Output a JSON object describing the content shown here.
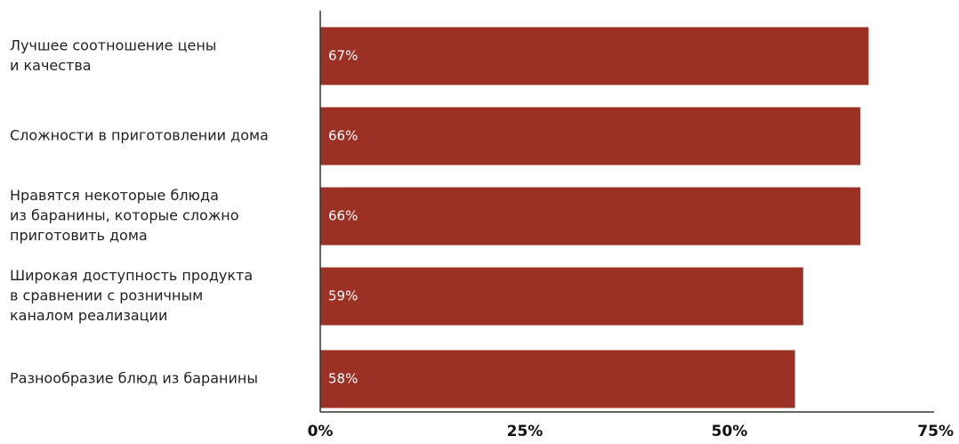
{
  "chart_data": {
    "type": "bar",
    "orientation": "horizontal",
    "categories": [
      [
        "Лучшее соотношение цены",
        "и качества"
      ],
      [
        "Сложности в приготовлении дома"
      ],
      [
        "Нравятся некоторые блюда",
        "из баранины, которые сложно",
        "приготовить дома"
      ],
      [
        "Широкая доступность продукта",
        "в сравнении с розничным",
        "каналом реализации"
      ],
      [
        "Разнообразие блюд из баранины"
      ]
    ],
    "values": [
      67,
      66,
      66,
      59,
      58
    ],
    "data_labels": [
      "67%",
      "66%",
      "66%",
      "59%",
      "58%"
    ],
    "xlim": [
      0,
      75
    ],
    "x_ticks": [
      0,
      25,
      50,
      75
    ],
    "x_tick_labels": [
      "0%",
      "25%",
      "50%",
      "75%"
    ],
    "grid": false,
    "legend": "none",
    "colors": {
      "bar": "#9b3025",
      "axis": "#333333"
    }
  }
}
